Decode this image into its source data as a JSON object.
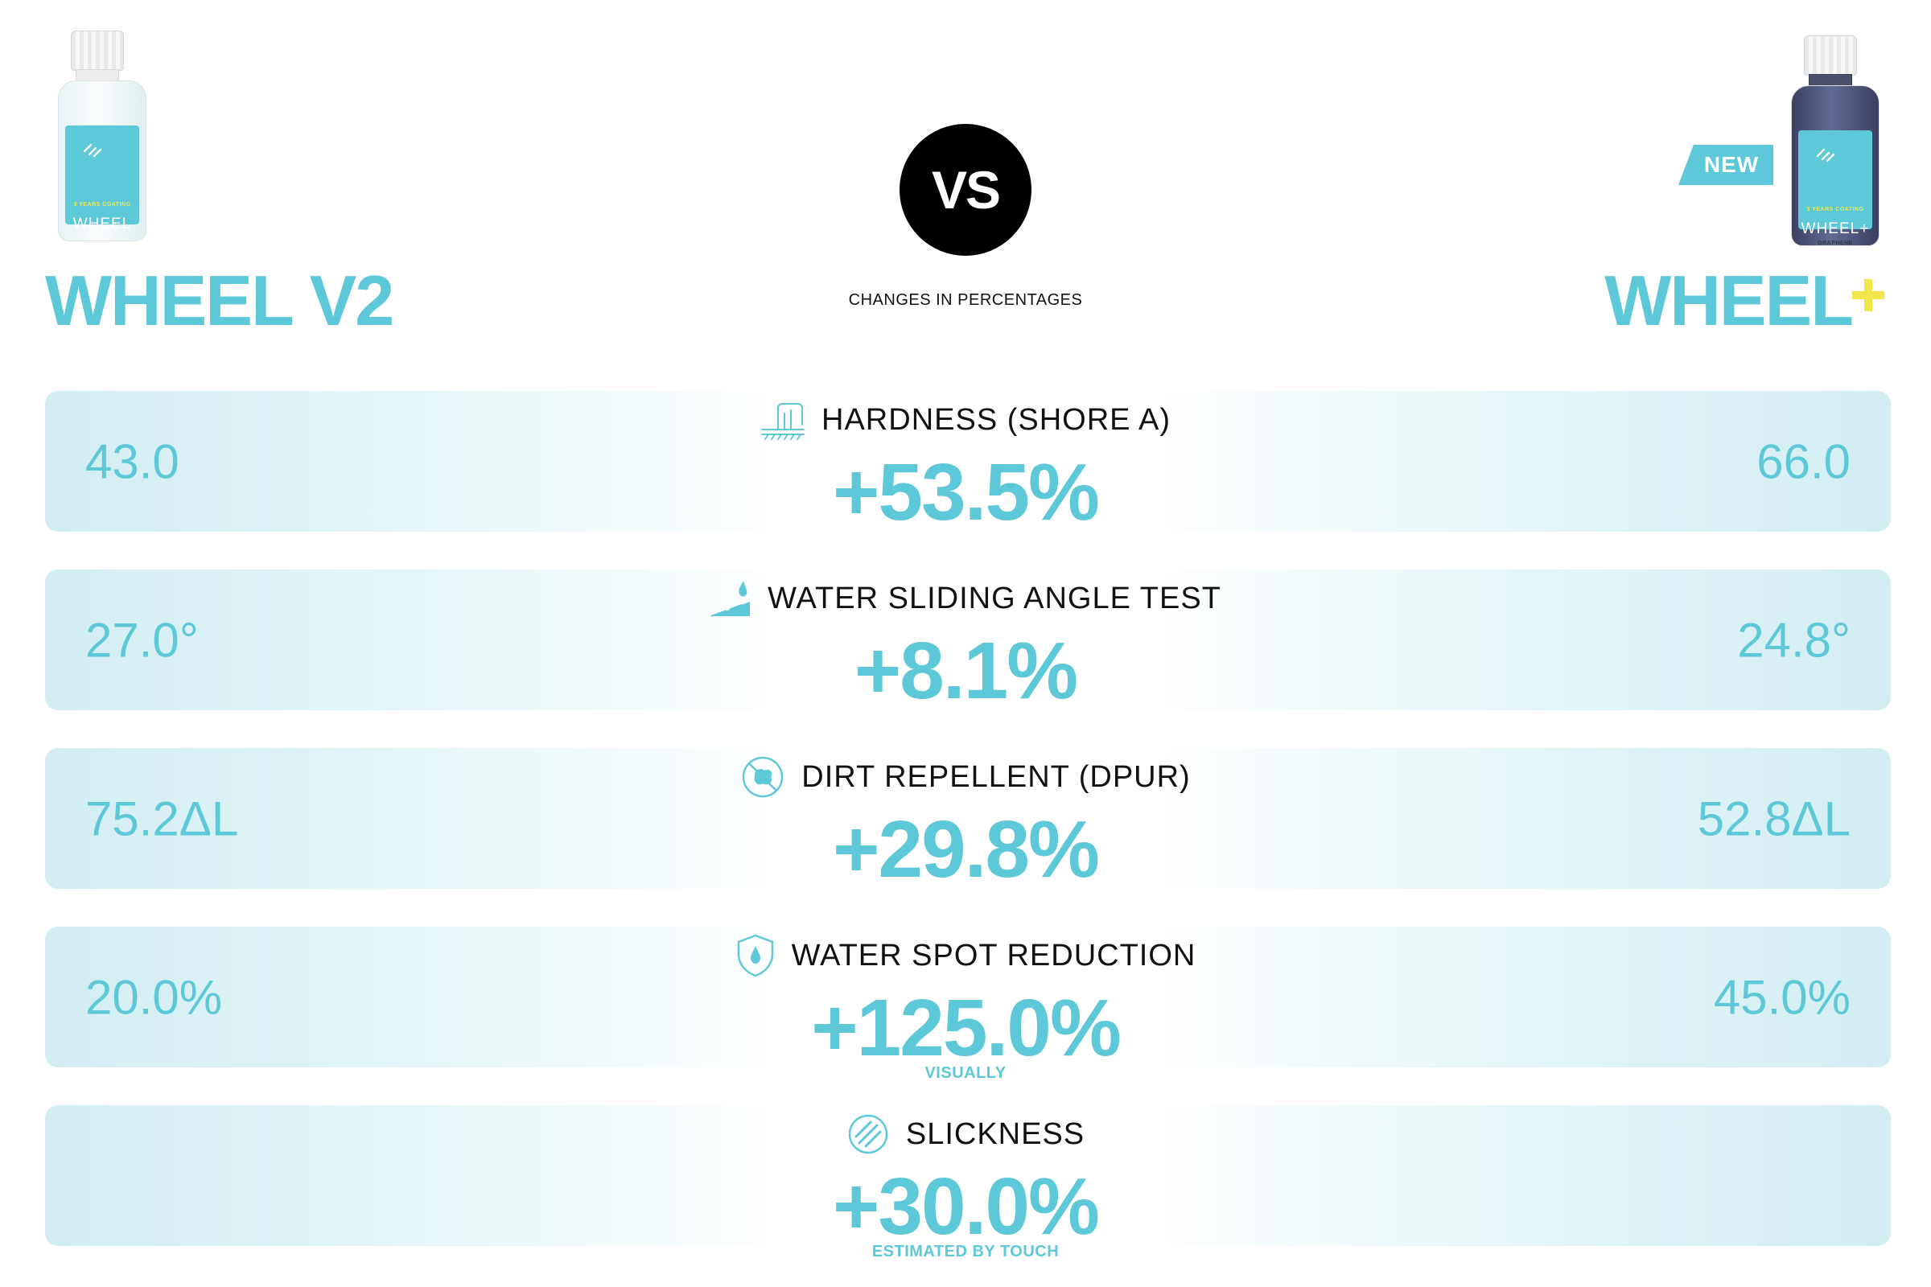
{
  "left_product": {
    "name": "WHEEL V2",
    "bottle_label": "WHEEL",
    "bottle_small_text": "3 YEARS COATING"
  },
  "right_product": {
    "name": "WHEEL",
    "badge": "NEW",
    "bottle_label": "WHEEL+",
    "bottle_small_text": "3 YEARS COATING",
    "bottle_sub_text": "GRAPHENE"
  },
  "vs_label": "VS",
  "caption": "CHANGES IN PERCENTAGES",
  "colors": {
    "accent": "#5dc8d8",
    "plus": "#f2e64b",
    "text": "#111111"
  },
  "metrics": [
    {
      "icon": "hardness-icon",
      "label": "HARDNESS (SHORE A)",
      "change": "+53.5%",
      "note": "",
      "left_value": "43.0",
      "right_value": "66.0"
    },
    {
      "icon": "water-drop-slope-icon",
      "label": "WATER SLIDING ANGLE TEST",
      "change": "+8.1%",
      "note": "",
      "left_value": "27.0°",
      "right_value": "24.8°"
    },
    {
      "icon": "no-dirt-icon",
      "label": "DIRT REPELLENT (DPUR)",
      "change": "+29.8%",
      "note": "",
      "left_value": "75.2ΔL",
      "right_value": "52.8ΔL"
    },
    {
      "icon": "shield-drop-icon",
      "label": "WATER SPOT REDUCTION",
      "change": "+125.0%",
      "note": "VISUALLY",
      "left_value": "20.0%",
      "right_value": "45.0%"
    },
    {
      "icon": "slickness-icon",
      "label": "SLICKNESS",
      "change": "+30.0%",
      "note": "ESTIMATED BY TOUCH",
      "left_value": "",
      "right_value": ""
    }
  ]
}
